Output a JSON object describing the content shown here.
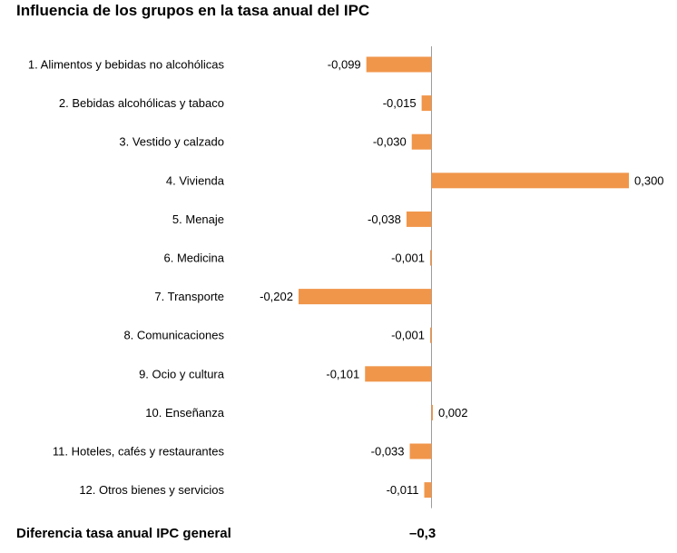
{
  "title": "Influencia de los grupos en la tasa anual del IPC",
  "footer": {
    "label": "Diferencia tasa anual IPC general",
    "value": "–0,3"
  },
  "colors": {
    "bar": "#F0964B",
    "axis": "#9a9a9a"
  },
  "chart_data": {
    "type": "bar",
    "orientation": "horizontal",
    "title": "Influencia de los grupos en la tasa anual del IPC",
    "categories": [
      "1. Alimentos y bebidas no alcohólicas",
      "2. Bebidas alcohólicas y tabaco",
      "3. Vestido y calzado",
      "4. Vivienda",
      "5. Menaje",
      "6. Medicina",
      "7. Transporte",
      "8. Comunicaciones",
      "9. Ocio y cultura",
      "10. Enseñanza",
      "11. Hoteles, cafés y restaurantes",
      "12. Otros bienes y servicios"
    ],
    "values": [
      -0.099,
      -0.015,
      -0.03,
      0.3,
      -0.038,
      -0.001,
      -0.202,
      -0.001,
      -0.101,
      0.002,
      -0.033,
      -0.011
    ],
    "value_labels": [
      "-0,099",
      "-0,015",
      "-0,030",
      "0,300",
      "-0,038",
      "-0,001",
      "-0,202",
      "-0,001",
      "-0,101",
      "0,002",
      "-0,033",
      "-0,011"
    ],
    "xlim": [
      -0.202,
      0.3
    ],
    "grid": false,
    "legend": "none"
  }
}
